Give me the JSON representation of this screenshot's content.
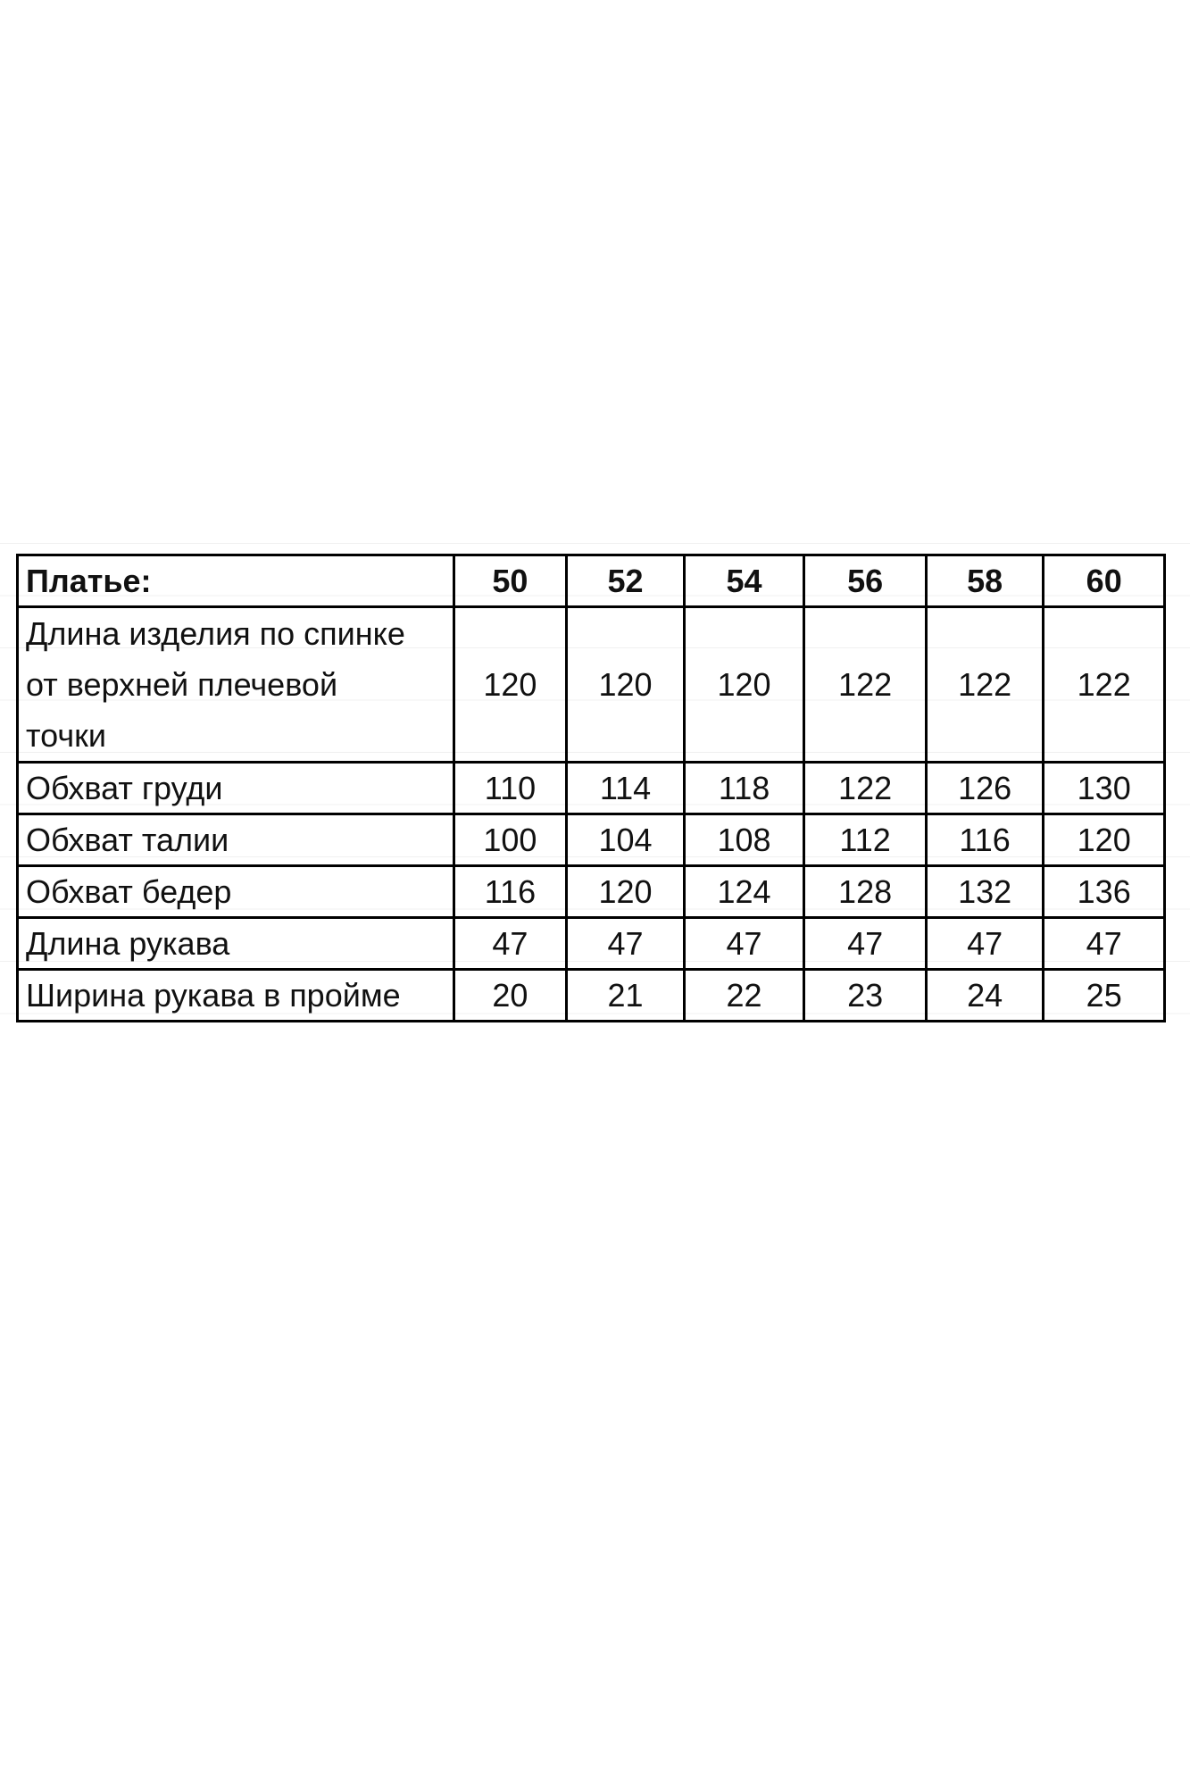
{
  "table": {
    "header": {
      "label": "Платье:",
      "sizes": [
        "50",
        "52",
        "54",
        "56",
        "58",
        "60"
      ]
    },
    "rows": [
      {
        "label": "Длина изделия по спинке от верхней плечевой точки",
        "label_lines": [
          "Длина изделия по спинке",
          "от верхней плечевой",
          "точки"
        ],
        "values": [
          "120",
          "120",
          "120",
          "122",
          "122",
          "122"
        ]
      },
      {
        "label": "Обхват груди",
        "values": [
          "110",
          "114",
          "118",
          "122",
          "126",
          "130"
        ]
      },
      {
        "label": "Обхват талии",
        "values": [
          "100",
          "104",
          "108",
          "112",
          "116",
          "120"
        ]
      },
      {
        "label": "Обхват бедер",
        "values": [
          "116",
          "120",
          "124",
          "128",
          "132",
          "136"
        ]
      },
      {
        "label": "Длина рукава",
        "values": [
          "47",
          "47",
          "47",
          "47",
          "47",
          "47"
        ]
      },
      {
        "label": "Ширина рукава в пройме",
        "values": [
          "20",
          "21",
          "22",
          "23",
          "24",
          "25"
        ]
      }
    ]
  }
}
